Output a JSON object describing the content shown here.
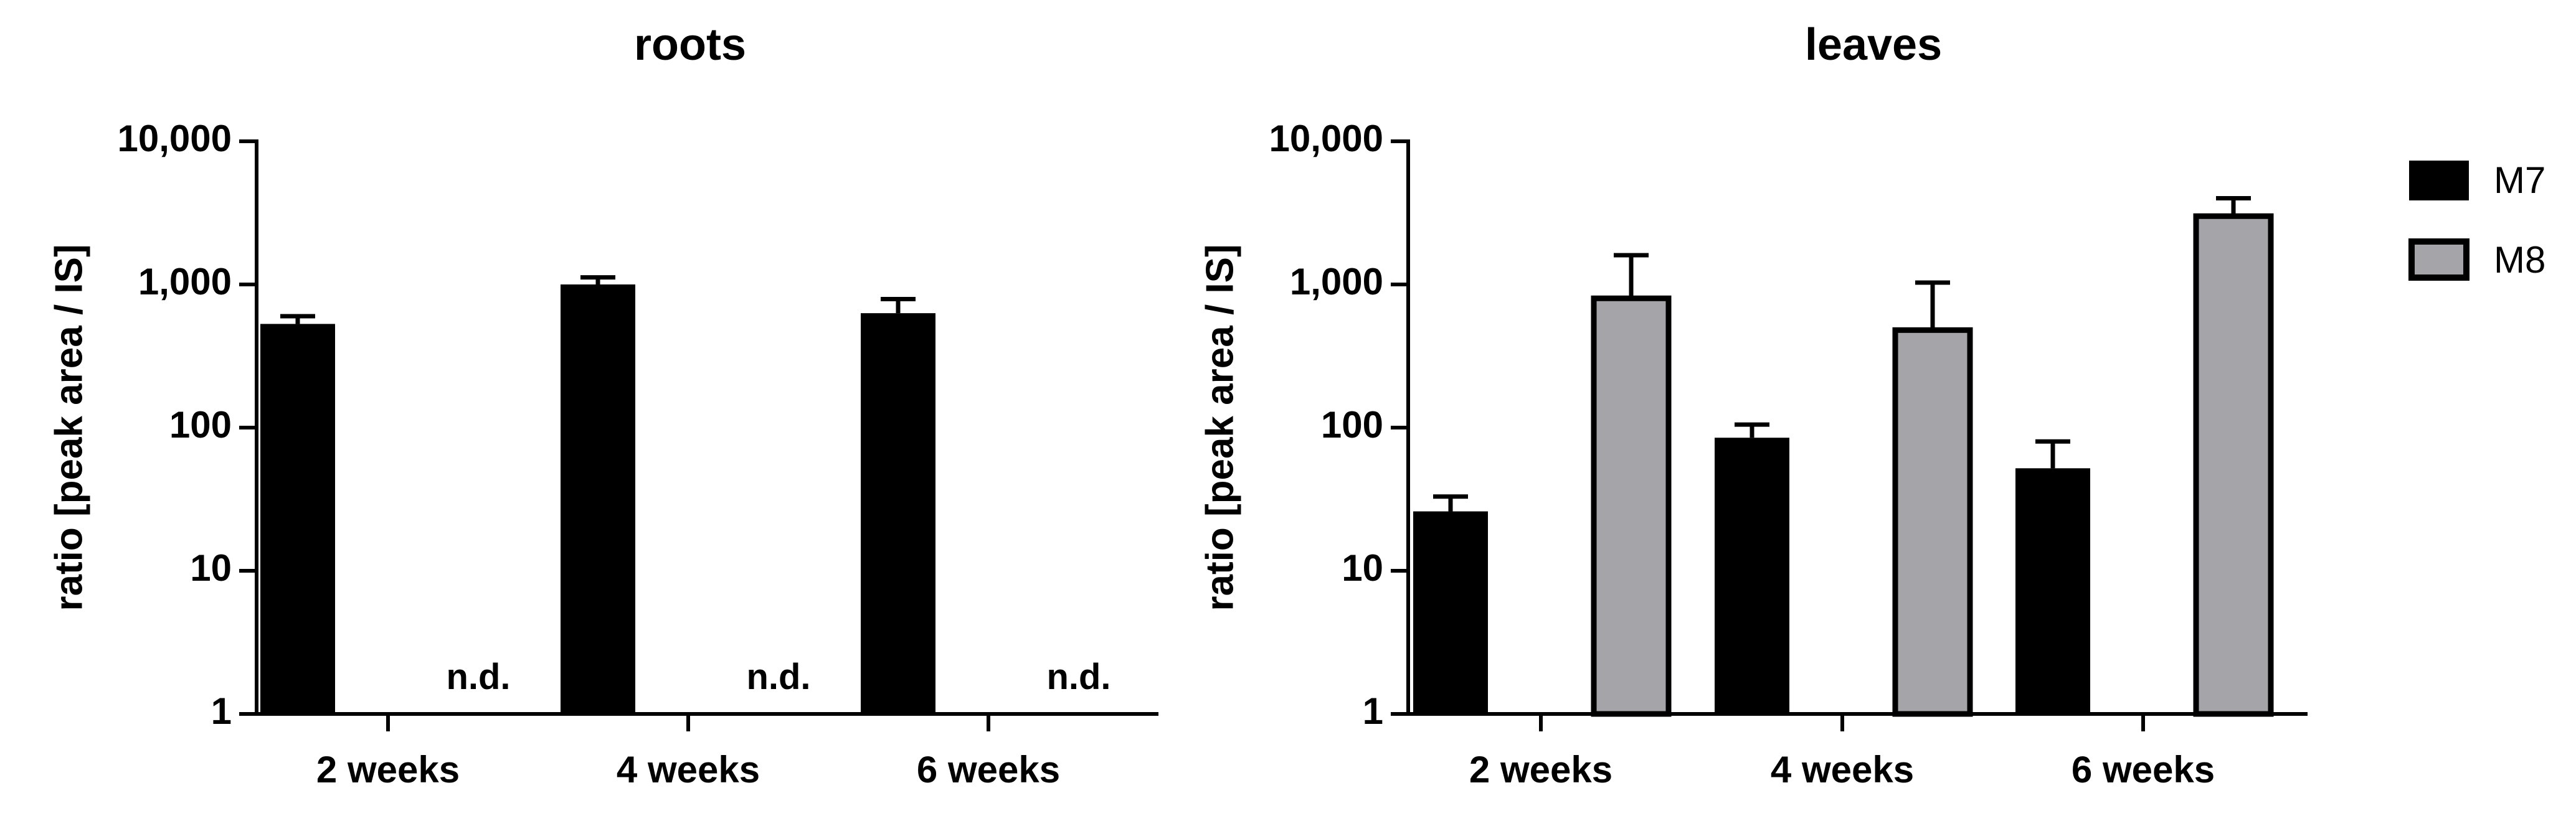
{
  "chart_data": [
    {
      "type": "bar",
      "title": "roots",
      "ylabel": "ratio [peak area / IS]",
      "y_scale": "log",
      "ylim": [
        1,
        10000
      ],
      "y_ticks": [
        {
          "value": 1,
          "label": "1"
        },
        {
          "value": 10,
          "label": "10"
        },
        {
          "value": 100,
          "label": "100"
        },
        {
          "value": 1000,
          "label": "1,000"
        },
        {
          "value": 10000,
          "label": "10,000"
        }
      ],
      "categories": [
        "2 weeks",
        "4 weeks",
        "6 weeks"
      ],
      "series": [
        {
          "name": "M7",
          "values": [
            530,
            1000,
            630
          ],
          "error_upper": [
            600,
            1120,
            790
          ]
        },
        {
          "name": "M8",
          "values": [
            null,
            null,
            null
          ],
          "annotation": "n.d."
        }
      ]
    },
    {
      "type": "bar",
      "title": "leaves",
      "ylabel": "ratio [peak area / IS]",
      "y_scale": "log",
      "ylim": [
        1,
        10000
      ],
      "y_ticks": [
        {
          "value": 1,
          "label": "1"
        },
        {
          "value": 10,
          "label": "10"
        },
        {
          "value": 100,
          "label": "100"
        },
        {
          "value": 1000,
          "label": "1,000"
        },
        {
          "value": 10000,
          "label": "10,000"
        }
      ],
      "categories": [
        "2 weeks",
        "4 weeks",
        "6 weeks"
      ],
      "series": [
        {
          "name": "M7",
          "values": [
            26,
            85,
            52
          ],
          "error_upper": [
            33,
            105,
            80
          ]
        },
        {
          "name": "M8",
          "values": [
            800,
            480,
            3000
          ],
          "error_upper": [
            1600,
            1030,
            4000
          ]
        }
      ]
    }
  ],
  "legend": {
    "position": "right",
    "items": [
      {
        "label": "M7",
        "color": "#000000"
      },
      {
        "label": "M8",
        "color": "#a5a5a9"
      }
    ]
  }
}
